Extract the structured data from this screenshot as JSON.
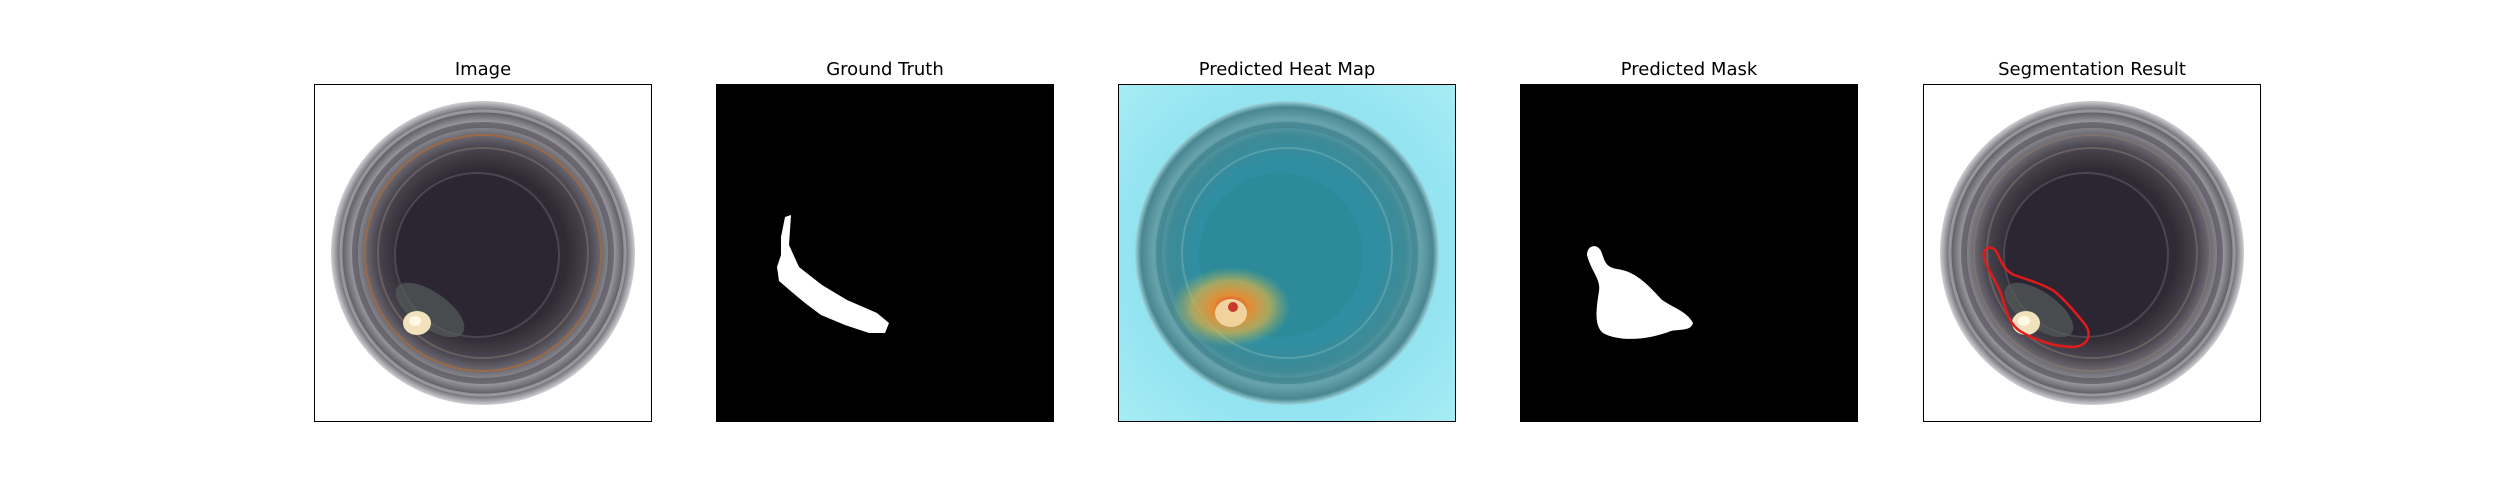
{
  "panels": [
    {
      "title": "Image"
    },
    {
      "title": "Ground Truth"
    },
    {
      "title": "Predicted Heat Map"
    },
    {
      "title": "Predicted Mask"
    },
    {
      "title": "Segmentation Result"
    }
  ],
  "colors": {
    "background": "#ffffff",
    "mask_background": "#000000",
    "mask_foreground": "#ffffff",
    "heat_cold": "#8fe0f2",
    "heat_hot": "#ffd24a",
    "contour": "#e11a1a"
  }
}
